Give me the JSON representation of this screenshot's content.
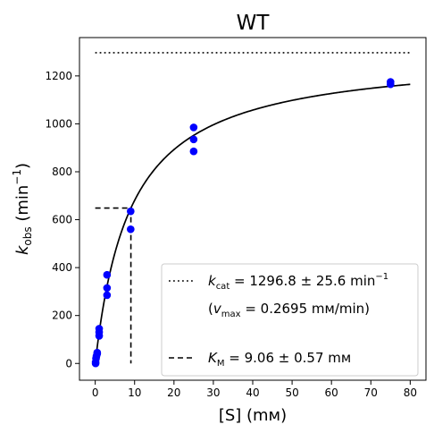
{
  "chart_data": {
    "type": "scatter",
    "title": "WT",
    "xlabel": "[S] (mм)",
    "ylabel": {
      "base": "k",
      "sub": "obs",
      "unit_prefix": "(min",
      "sup": "−1",
      "unit_suffix": ")"
    },
    "xlim": [
      -4,
      84
    ],
    "ylim": [
      -70,
      1360
    ],
    "x_ticks": [
      0,
      10,
      20,
      30,
      40,
      50,
      60,
      70,
      80
    ],
    "y_ticks": [
      0,
      200,
      400,
      600,
      800,
      1000,
      1200
    ],
    "grid": false,
    "legend_position": "lower-right",
    "colors": {
      "points": "#0000ff",
      "fit": "#000000",
      "reference_lines": "#000000"
    },
    "series": [
      {
        "kind": "scatter",
        "x": [
          0.1,
          0.1,
          0.2,
          0.3,
          0.5,
          0.5,
          1.0,
          1.0,
          1.0,
          3.0,
          3.0,
          3.0,
          9.0,
          9.0,
          25.0,
          25.0,
          25.0,
          75.0,
          75.0
        ],
        "y": [
          0,
          5,
          20,
          30,
          45,
          40,
          115,
          130,
          145,
          285,
          315,
          370,
          560,
          635,
          885,
          935,
          985,
          1165,
          1175
        ]
      },
      {
        "kind": "line",
        "model": "michaelis_menten",
        "vmax": 1296.8,
        "km": 9.06,
        "x_range": [
          0,
          80
        ]
      }
    ],
    "reference_lines": {
      "kcat_line": {
        "y": 1296.8,
        "x_range": [
          0,
          80
        ],
        "style": "dotted"
      },
      "km_lines": {
        "x": 9.06,
        "y": 648.4,
        "style": "dashed"
      }
    },
    "legend": {
      "kcat": {
        "symbol": "k",
        "sub": "cat",
        "text": " = 1296.8 ± 25.6 min",
        "sup": "−1"
      },
      "vmax": {
        "prefix": "(",
        "symbol": "v",
        "sub": "max",
        "text": " = 0.2695 mм/min)"
      },
      "km": {
        "symbol": "K",
        "sub": "M",
        "text": " = 9.06 ± 0.57 mм"
      }
    }
  }
}
